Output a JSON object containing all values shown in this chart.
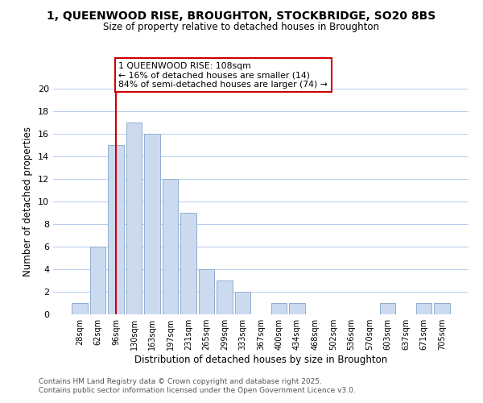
{
  "title": "1, QUEENWOOD RISE, BROUGHTON, STOCKBRIDGE, SO20 8BS",
  "subtitle": "Size of property relative to detached houses in Broughton",
  "xlabel": "Distribution of detached houses by size in Broughton",
  "ylabel": "Number of detached properties",
  "bar_color": "#ccdaf0",
  "bar_edge_color": "#90aed0",
  "background_color": "#ffffff",
  "grid_color": "#b8ccee",
  "categories": [
    "28sqm",
    "62sqm",
    "96sqm",
    "130sqm",
    "163sqm",
    "197sqm",
    "231sqm",
    "265sqm",
    "299sqm",
    "333sqm",
    "367sqm",
    "400sqm",
    "434sqm",
    "468sqm",
    "502sqm",
    "536sqm",
    "570sqm",
    "603sqm",
    "637sqm",
    "671sqm",
    "705sqm"
  ],
  "values": [
    1,
    6,
    15,
    17,
    16,
    12,
    9,
    4,
    3,
    2,
    0,
    1,
    1,
    0,
    0,
    0,
    0,
    1,
    0,
    1,
    1
  ],
  "ylim": [
    0,
    20
  ],
  "yticks": [
    0,
    2,
    4,
    6,
    8,
    10,
    12,
    14,
    16,
    18,
    20
  ],
  "vline_x": 2.0,
  "vline_color": "#cc0000",
  "annotation_lines": [
    "1 QUEENWOOD RISE: 108sqm",
    "← 16% of detached houses are smaller (14)",
    "84% of semi-detached houses are larger (74) →"
  ],
  "footer_line1": "Contains HM Land Registry data © Crown copyright and database right 2025.",
  "footer_line2": "Contains public sector information licensed under the Open Government Licence v3.0."
}
